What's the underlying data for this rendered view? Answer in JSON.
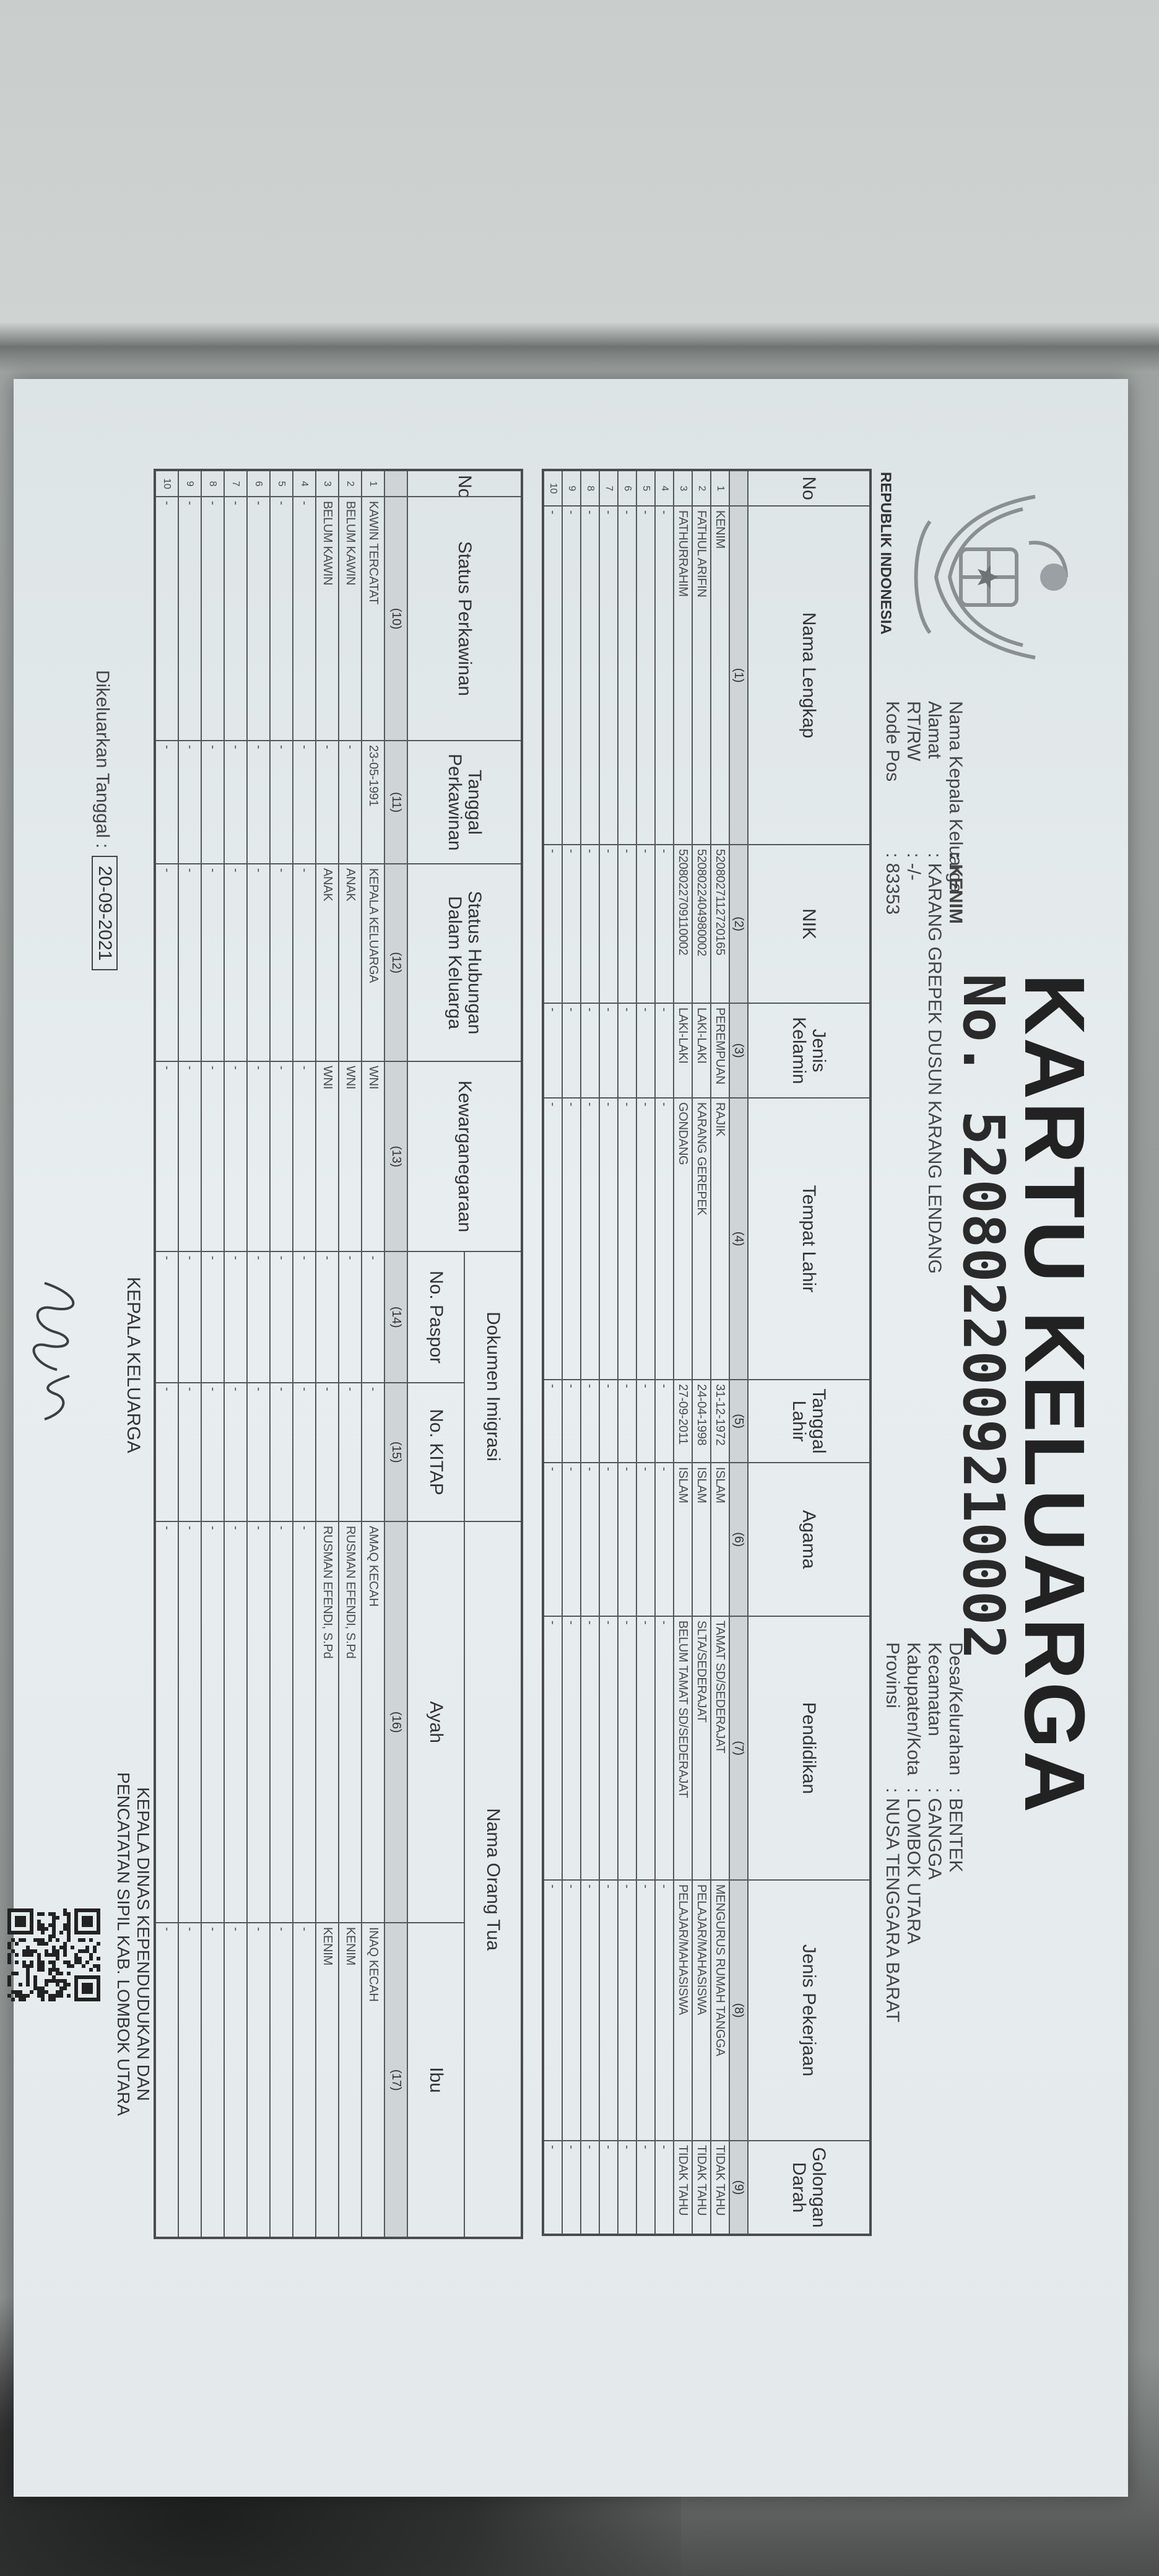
{
  "title": "KARTU KELUARGA",
  "number": "No. 5208022009210002",
  "emblem_label": "REPUBLIK INDONESIA",
  "info_left": [
    {
      "label": "Nama Kepala Keluarga",
      "value": ": KENIM"
    },
    {
      "label": "Alamat",
      "value": ": KARANG GREPEK DUSUN KARANG LENDANG"
    },
    {
      "label": "RT/RW",
      "value": ": -/-"
    },
    {
      "label": "Kode Pos",
      "value": ": 83353"
    }
  ],
  "info_right": [
    {
      "label": "Desa/Kelurahan",
      "value": ": BENTEK"
    },
    {
      "label": "Kecamatan",
      "value": ": GANGGA"
    },
    {
      "label": "Kabupaten/Kota",
      "value": ": LOMBOK UTARA"
    },
    {
      "label": "Provinsi",
      "value": ": NUSA TENGGARA BARAT"
    }
  ],
  "table1": {
    "headers": [
      "No",
      "Nama Lengkap",
      "NIK",
      "Jenis Kelamin",
      "Tempat Lahir",
      "Tanggal Lahir",
      "Agama",
      "Pendidikan",
      "Jenis Pekerjaan",
      "Golongan Darah"
    ],
    "col_numbers": [
      "",
      "(1)",
      "(2)",
      "(3)",
      "(4)",
      "(5)",
      "(6)",
      "(7)",
      "(8)",
      "(9)"
    ],
    "rows": [
      [
        "1",
        "KENIM",
        "5208027112720165",
        "PEREMPUAN",
        "RAJIK",
        "31-12-1972",
        "ISLAM",
        "TAMAT SD/SEDERAJAT",
        "MENGURUS RUMAH TANGGA",
        "TIDAK TAHU"
      ],
      [
        "2",
        "FATHUL ARIFIN",
        "5208022404980002",
        "LAKI-LAKI",
        "KARANG GEREPEK",
        "24-04-1998",
        "ISLAM",
        "SLTA/SEDERAJAT",
        "PELAJAR/MAHASISWA",
        "TIDAK TAHU"
      ],
      [
        "3",
        "FATHURRAHIM",
        "5208022709110002",
        "LAKI-LAKI",
        "GONDANG",
        "27-09-2011",
        "ISLAM",
        "BELUM TAMAT SD/SEDERAJAT",
        "PELAJAR/MAHASISWA",
        "TIDAK TAHU"
      ],
      [
        "4",
        "-",
        "-",
        "-",
        "-",
        "-",
        "-",
        "-",
        "-",
        "-"
      ],
      [
        "5",
        "-",
        "-",
        "-",
        "-",
        "-",
        "-",
        "-",
        "-",
        "-"
      ],
      [
        "6",
        "-",
        "-",
        "-",
        "-",
        "-",
        "-",
        "-",
        "-",
        "-"
      ],
      [
        "7",
        "-",
        "-",
        "-",
        "-",
        "-",
        "-",
        "-",
        "-",
        "-"
      ],
      [
        "8",
        "-",
        "-",
        "-",
        "-",
        "-",
        "-",
        "-",
        "-",
        "-"
      ],
      [
        "9",
        "-",
        "-",
        "-",
        "-",
        "-",
        "-",
        "-",
        "-",
        "-"
      ],
      [
        "10",
        "-",
        "-",
        "-",
        "-",
        "-",
        "-",
        "-",
        "-",
        "-"
      ]
    ]
  },
  "table2": {
    "headers": {
      "no": "No.",
      "status_perkawinan": "Status Perkawinan",
      "tanggal_perkawinan": "Tanggal Perkawinan",
      "status_hubungan": "Status Hubungan Dalam Keluarga",
      "kewarganegaraan": "Kewarganegaraan",
      "dokumen_imigrasi": "Dokumen Imigrasi",
      "no_paspor": "No. Paspor",
      "no_kitap": "No. KITAP",
      "nama_orang_tua": "Nama Orang Tua",
      "ayah": "Ayah",
      "ibu": "Ibu"
    },
    "col_numbers": [
      "",
      "(10)",
      "(11)",
      "(12)",
      "(13)",
      "(14)",
      "(15)",
      "(16)",
      "(17)"
    ],
    "rows": [
      [
        "1",
        "KAWIN TERCATAT",
        "23-05-1991",
        "KEPALA KELUARGA",
        "WNI",
        "-",
        "-",
        "AMAQ KECAH",
        "INAQ KECAH"
      ],
      [
        "2",
        "BELUM KAWIN",
        "-",
        "ANAK",
        "WNI",
        "-",
        "-",
        "RUSMAN EFENDI, S.Pd",
        "KENIM"
      ],
      [
        "3",
        "BELUM KAWIN",
        "-",
        "ANAK",
        "WNI",
        "-",
        "-",
        "RUSMAN EFENDI, S.Pd",
        "KENIM"
      ],
      [
        "4",
        "-",
        "-",
        "-",
        "-",
        "-",
        "-",
        "-",
        "-"
      ],
      [
        "5",
        "-",
        "-",
        "-",
        "-",
        "-",
        "-",
        "-",
        "-"
      ],
      [
        "6",
        "-",
        "-",
        "-",
        "-",
        "-",
        "-",
        "-",
        "-"
      ],
      [
        "7",
        "-",
        "-",
        "-",
        "-",
        "-",
        "-",
        "-",
        "-"
      ],
      [
        "8",
        "-",
        "-",
        "-",
        "-",
        "-",
        "-",
        "-",
        "-"
      ],
      [
        "9",
        "-",
        "-",
        "-",
        "-",
        "-",
        "-",
        "-",
        "-"
      ],
      [
        "10",
        "-",
        "-",
        "-",
        "-",
        "-",
        "-",
        "-",
        "-"
      ]
    ]
  },
  "footer": {
    "issued_label": "Dikeluarkan Tanggal :",
    "issued_date": "20-09-2021",
    "head_of_family": "KEPALA KELUARGA",
    "official_line1": "KEPALA DINAS KEPENDUDUKAN DAN",
    "official_line2": "PENCATATAN SIPIL KAB. LOMBOK UTARA"
  },
  "icons": {
    "emblem": "garuda-pancasila-emblem",
    "qr": "qr-code",
    "signature": "handwritten-signature"
  }
}
